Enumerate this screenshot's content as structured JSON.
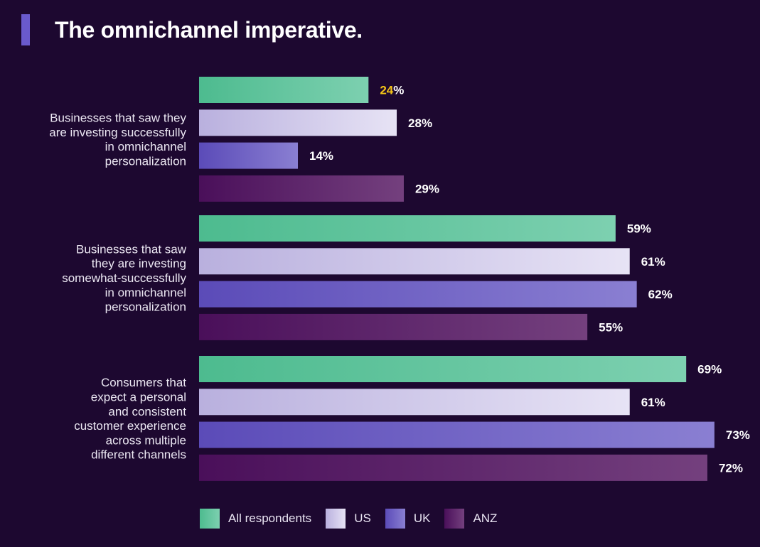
{
  "title": "The omnichannel imperative.",
  "chart_data": {
    "type": "bar",
    "orientation": "horizontal",
    "title": "The omnichannel imperative.",
    "value_suffix": "%",
    "xlim": [
      0,
      100
    ],
    "categories": [
      "Businesses that saw they are investing successfully in omnichannel personalization",
      "Businesses that saw they are investing somewhat-successfully in omnichannel personalization",
      "Consumers that expect a personal and consistent customer experience across multiple different channels"
    ],
    "category_lines": [
      [
        "Businesses that saw they",
        "are investing successfully",
        "in omnichannel",
        "personalization"
      ],
      [
        "Businesses that saw",
        "they are investing",
        "somewhat-successfully",
        "in omnichannel",
        "personalization"
      ],
      [
        "Consumers that",
        "expect a personal",
        "and consistent",
        "customer experience",
        "across multiple",
        "different channels"
      ]
    ],
    "series": [
      {
        "name": "All respondents",
        "values": [
          24,
          59,
          69
        ]
      },
      {
        "name": "US",
        "values": [
          28,
          61,
          61
        ]
      },
      {
        "name": "UK",
        "values": [
          14,
          62,
          73
        ]
      },
      {
        "name": "ANZ",
        "values": [
          29,
          55,
          72
        ]
      }
    ],
    "highlight": {
      "series": 0,
      "category": 0,
      "color": "#f5c518"
    },
    "series_colors": [
      [
        "#4dbb8f",
        "#7dd0b0"
      ],
      [
        "#b9b0de",
        "#e7e3f5"
      ],
      [
        "#5b4bb8",
        "#8a7fd2"
      ],
      [
        "#4a0f5a",
        "#74407e"
      ]
    ]
  }
}
